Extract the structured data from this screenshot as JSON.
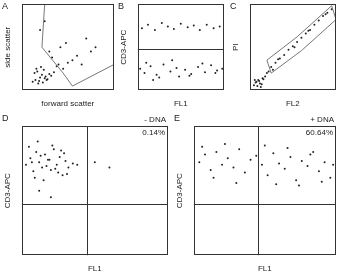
{
  "chart_data": [
    {
      "type": "scatter",
      "title": "A",
      "x_label": "forward scatter",
      "y_label": "side scatter",
      "xlim": [
        0,
        100
      ],
      "ylim": [
        0,
        100
      ],
      "tick_labels": false,
      "grid": false,
      "color": "#222222",
      "x": [
        12,
        15,
        18,
        20,
        22,
        25,
        14,
        17,
        19,
        23,
        26,
        28,
        30,
        16,
        21,
        24,
        27,
        32,
        35,
        38,
        40,
        45,
        50,
        55,
        60,
        65,
        30,
        42,
        48,
        70,
        75,
        80,
        20,
        25,
        33
      ],
      "values": [
        10,
        12,
        8,
        15,
        18,
        14,
        20,
        22,
        11,
        9,
        16,
        13,
        19,
        25,
        27,
        24,
        12,
        17,
        21,
        28,
        30,
        25,
        32,
        35,
        40,
        30,
        45,
        50,
        55,
        60,
        45,
        50,
        70,
        80,
        38
      ],
      "gate": [
        [
          25,
          100
        ],
        [
          22,
          50
        ],
        [
          45,
          20
        ],
        [
          55,
          5
        ],
        [
          100,
          30
        ],
        [
          100,
          100
        ]
      ]
    },
    {
      "type": "scatter",
      "title": "B",
      "x_label": "FL1",
      "y_label": "CD3-APC",
      "xlim": [
        0,
        100
      ],
      "ylim": [
        0,
        100
      ],
      "tick_labels": false,
      "grid": false,
      "color": "#222222",
      "x": [
        5,
        12,
        20,
        28,
        35,
        42,
        50,
        58,
        65,
        72,
        80,
        88,
        95,
        3,
        8,
        15,
        22,
        30,
        38,
        45,
        55,
        62,
        70,
        78,
        85,
        92,
        98,
        10,
        25,
        40,
        60,
        75,
        90,
        18,
        48
      ],
      "values": [
        72,
        76,
        70,
        78,
        74,
        71,
        77,
        73,
        75,
        70,
        76,
        72,
        74,
        25,
        20,
        28,
        18,
        30,
        22,
        26,
        24,
        19,
        27,
        21,
        29,
        23,
        25,
        32,
        15,
        35,
        17,
        31,
        20,
        12,
        16
      ],
      "quadrant": {
        "y": 48
      }
    },
    {
      "type": "scatter",
      "title": "C",
      "x_label": "FL2",
      "y_label": "PI",
      "xlim": [
        0,
        100
      ],
      "ylim": [
        0,
        100
      ],
      "tick_labels": false,
      "grid": false,
      "color": "#222222",
      "x": [
        8,
        10,
        12,
        15,
        18,
        20,
        22,
        25,
        30,
        35,
        40,
        45,
        50,
        55,
        60,
        65,
        70,
        75,
        80,
        85,
        90,
        95,
        5,
        7,
        9,
        11,
        14,
        16,
        6,
        13,
        27,
        33,
        52,
        68,
        88
      ],
      "values": [
        10,
        12,
        8,
        14,
        16,
        20,
        22,
        27,
        32,
        37,
        41,
        47,
        51,
        56,
        61,
        66,
        70,
        76,
        81,
        86,
        90,
        94,
        6,
        9,
        5,
        11,
        7,
        13,
        12,
        4,
        24,
        36,
        50,
        69,
        88
      ],
      "gate": [
        [
          20,
          35
        ],
        [
          55,
          62
        ],
        [
          95,
          98
        ],
        [
          100,
          82
        ],
        [
          60,
          46
        ],
        [
          25,
          20
        ]
      ]
    },
    {
      "type": "scatter",
      "title": "D",
      "subtitle": "- DNA",
      "annotations": [
        "0.14%"
      ],
      "x_label": "FL1",
      "y_label": "CD3-APC",
      "xlim": [
        0,
        100
      ],
      "ylim": [
        0,
        100
      ],
      "tick_labels": false,
      "grid": false,
      "color": "#222222",
      "x": [
        3,
        6,
        8,
        10,
        12,
        14,
        16,
        18,
        20,
        22,
        24,
        26,
        28,
        30,
        32,
        35,
        5,
        9,
        13,
        17,
        21,
        25,
        29,
        7,
        11,
        15,
        19,
        23,
        27,
        31,
        38,
        50,
        60,
        12,
        20
      ],
      "values": [
        70,
        75,
        65,
        80,
        72,
        68,
        78,
        74,
        66,
        82,
        70,
        76,
        62,
        73,
        68,
        71,
        84,
        60,
        77,
        69,
        85,
        64,
        79,
        72,
        88,
        58,
        74,
        67,
        81,
        63,
        70,
        72,
        68,
        50,
        45
      ],
      "quadrant": {
        "x": 45,
        "y": 40
      }
    },
    {
      "type": "scatter",
      "title": "E",
      "subtitle": "+ DNA",
      "annotations": [
        "60.64%"
      ],
      "x_label": "FL1",
      "y_label": "CD3-APC",
      "xlim": [
        0,
        100
      ],
      "ylim": [
        0,
        100
      ],
      "tick_labels": false,
      "grid": false,
      "color": "#222222",
      "x": [
        4,
        8,
        12,
        16,
        20,
        24,
        28,
        32,
        36,
        40,
        44,
        48,
        52,
        56,
        60,
        64,
        68,
        72,
        76,
        80,
        84,
        88,
        92,
        96,
        6,
        14,
        22,
        30,
        50,
        58,
        66,
        74,
        82,
        90,
        98
      ],
      "values": [
        72,
        78,
        66,
        80,
        70,
        75,
        68,
        82,
        64,
        74,
        77,
        70,
        62,
        79,
        71,
        67,
        76,
        58,
        73,
        69,
        80,
        65,
        72,
        60,
        84,
        60,
        86,
        56,
        85,
        55,
        83,
        54,
        78,
        57,
        70
      ],
      "quadrant": {
        "x": 45,
        "y": 40
      }
    }
  ]
}
